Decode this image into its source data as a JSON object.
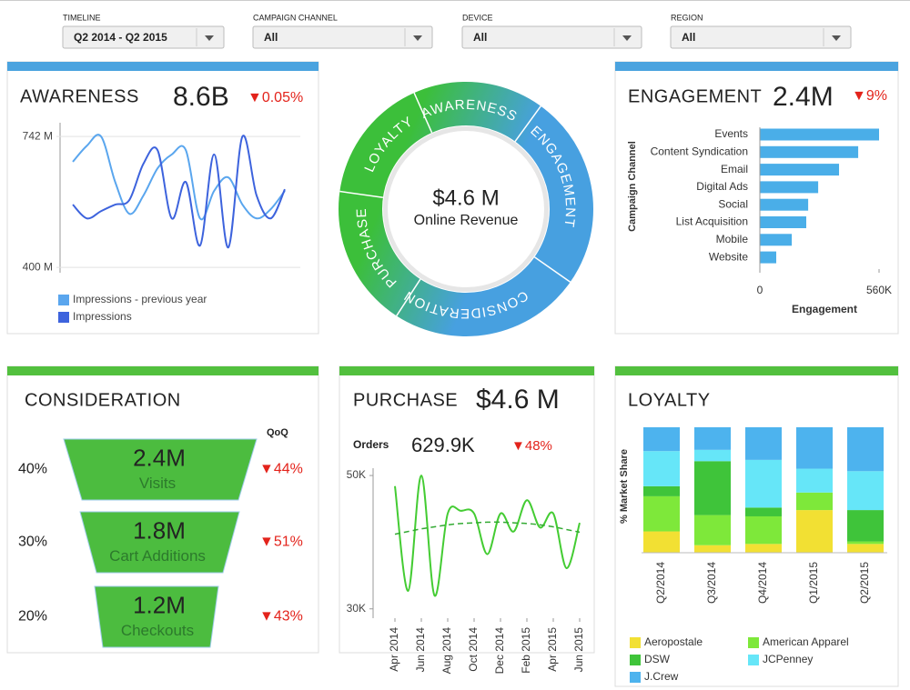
{
  "filters": [
    {
      "label": "TIMELINE",
      "value": "Q2 2014 - Q2 2015"
    },
    {
      "label": "CAMPAIGN CHANNEL",
      "value": "All"
    },
    {
      "label": "DEVICE",
      "value": "All"
    },
    {
      "label": "REGION",
      "value": "All"
    }
  ],
  "awareness": {
    "title": "AWARENESS",
    "value": "8.6B",
    "change": "▼0.05%"
  },
  "hub": {
    "value": "$4.6 M",
    "label": "Online Revenue",
    "stages": [
      "AWARENESS",
      "ENGAGEMENT",
      "CONSIDERATION",
      "PURCHASE",
      "LOYALTY"
    ]
  },
  "engagement": {
    "title": "ENGAGEMENT",
    "value": "2.4M",
    "change": "▼9%"
  },
  "consideration": {
    "title": "CONSIDERATION",
    "column_header": "QoQ",
    "funnel": [
      {
        "share": "40%",
        "value": "2.4M",
        "label": "Visits",
        "change": "▼44%"
      },
      {
        "share": "30%",
        "value": "1.8M",
        "label": "Cart Additions",
        "change": "▼51%"
      },
      {
        "share": "20%",
        "value": "1.2M",
        "label": "Checkouts",
        "change": "▼43%"
      }
    ]
  },
  "purchase": {
    "title": "PURCHASE",
    "value": "$4.6 M",
    "orders_label": "Orders",
    "orders_value": "629.9K",
    "change": "▼48%"
  },
  "loyalty": {
    "title": "LOYALTY"
  },
  "chart_data": [
    {
      "type": "line",
      "grid": true,
      "ylim": [
        386,
        778
      ],
      "yticks": [
        {
          "value": 742,
          "label": "742 M"
        },
        {
          "value": 400,
          "label": "400 M"
        }
      ],
      "series": [
        {
          "name": "Impressions - previous year",
          "color": "#5aa6ee",
          "values": [
            676,
            718,
            742,
            623,
            540,
            588,
            659,
            695,
            706,
            528,
            600,
            635,
            564,
            528,
            552,
            600
          ]
        },
        {
          "name": "Impressions",
          "color": "#3d63dd",
          "values": [
            564,
            528,
            547,
            564,
            576,
            671,
            706,
            528,
            623,
            457,
            695,
            452,
            742,
            588,
            528,
            604
          ]
        }
      ]
    },
    {
      "type": "bar",
      "orientation": "horizontal",
      "color": "#4aaee8",
      "categories": [
        "Events",
        "Content Syndication",
        "Email",
        "Digital Ads",
        "Social",
        "List Acquisition",
        "Mobile",
        "Website"
      ],
      "values": [
        560,
        462,
        372,
        274,
        227,
        218,
        150,
        77
      ],
      "xlim": [
        0,
        560
      ],
      "xticks": [
        0,
        {
          "value": 560,
          "label": "560K"
        }
      ],
      "x_label": "Engagement",
      "y_label": "Campaign Channel"
    },
    {
      "type": "line",
      "grid": false,
      "categories": [
        "Apr 2014",
        null,
        "Jun 2014",
        null,
        "Aug 2014",
        null,
        "Oct 2014",
        null,
        "Dec 2014",
        null,
        "Feb 2015",
        null,
        "Apr 2015",
        null,
        "Jun 2015"
      ],
      "ylim": [
        28.6,
        51.1
      ],
      "yticks": [
        {
          "value": 50,
          "label": "50K"
        },
        {
          "value": 30,
          "label": "30K"
        }
      ],
      "series": [
        {
          "color": "#44cc33",
          "values": [
            48.4,
            32.7,
            50.0,
            32.0,
            44.3,
            44.7,
            44.3,
            38.2,
            44.3,
            41.6,
            46.3,
            42.2,
            44.3,
            36.1,
            42.9
          ]
        },
        {
          "color": "#33aa33",
          "dashed": true,
          "values": [
            41.2,
            41.6,
            42.0,
            42.3,
            42.6,
            42.8,
            42.9,
            43.0,
            43.0,
            42.9,
            42.8,
            42.6,
            42.3,
            41.9,
            41.5
          ]
        }
      ]
    },
    {
      "type": "bar",
      "stacked": true,
      "y_label": "% Market Share",
      "categories": [
        "Q2/2014",
        "Q3/2014",
        "Q4/2014",
        "Q1/2015",
        "Q2/2015"
      ],
      "ylim": [
        0,
        100
      ],
      "series": [
        {
          "name": "Aeropostale",
          "color": "#f2e033",
          "values": [
            17,
            6,
            7,
            34,
            7
          ]
        },
        {
          "name": "American Apparel",
          "color": "#7ee83a",
          "values": [
            28,
            24,
            22,
            14,
            2
          ]
        },
        {
          "name": "DSW",
          "color": "#3fc43a",
          "values": [
            8,
            43,
            7,
            0,
            25
          ]
        },
        {
          "name": "JCPenney",
          "color": "#66e6f8",
          "values": [
            28,
            9,
            38,
            19,
            31
          ]
        },
        {
          "name": "J.Crew",
          "color": "#4db3ee",
          "values": [
            19,
            18,
            26,
            33,
            35
          ]
        }
      ]
    }
  ]
}
